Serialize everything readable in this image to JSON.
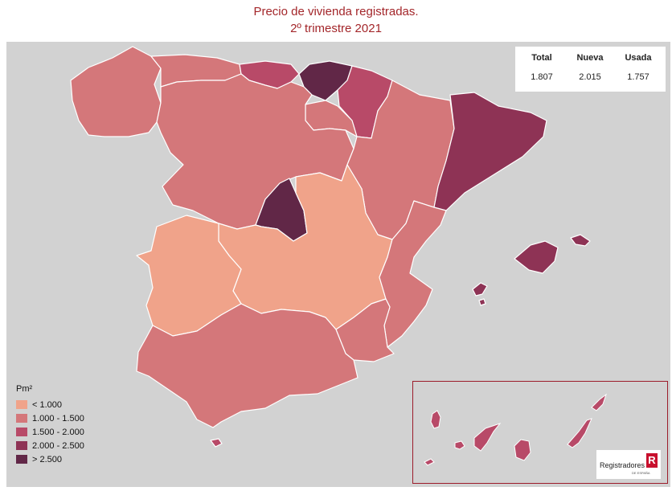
{
  "title": {
    "line1": "Precio de vivienda registradas.",
    "line2": "2º trimestre 2021"
  },
  "summary": {
    "headers": [
      "Total",
      "Nueva",
      "Usada"
    ],
    "values": [
      "1.807",
      "2.015",
      "1.757"
    ]
  },
  "legend": {
    "title": "Pm²",
    "items": [
      {
        "label": "< 1.000",
        "color": "#f0a38a"
      },
      {
        "label": "1.000 - 1.500",
        "color": "#d4777a"
      },
      {
        "label": "1.500 - 2.000",
        "color": "#b84a68"
      },
      {
        "label": "2.000 - 2.500",
        "color": "#8e3355"
      },
      {
        "label": "> 2.500",
        "color": "#612747"
      }
    ]
  },
  "regions": [
    {
      "name": "Galicia",
      "class": "1.000 - 1.500"
    },
    {
      "name": "Asturias",
      "class": "1.000 - 1.500"
    },
    {
      "name": "Cantabria",
      "class": "1.500 - 2.000"
    },
    {
      "name": "País Vasco",
      "class": "> 2.500"
    },
    {
      "name": "Navarra",
      "class": "1.500 - 2.000"
    },
    {
      "name": "La Rioja",
      "class": "1.000 - 1.500"
    },
    {
      "name": "Castilla y León",
      "class": "1.000 - 1.500"
    },
    {
      "name": "Aragón",
      "class": "1.000 - 1.500"
    },
    {
      "name": "Cataluña",
      "class": "2.000 - 2.500"
    },
    {
      "name": "Madrid",
      "class": "> 2.500"
    },
    {
      "name": "Castilla-La Mancha",
      "class": "< 1.000"
    },
    {
      "name": "Extremadura",
      "class": "< 1.000"
    },
    {
      "name": "Comunidad Valenciana",
      "class": "1.000 - 1.500"
    },
    {
      "name": "Murcia",
      "class": "1.000 - 1.500"
    },
    {
      "name": "Andalucía",
      "class": "1.000 - 1.500"
    },
    {
      "name": "Islas Baleares",
      "class": "2.000 - 2.500"
    },
    {
      "name": "Ceuta",
      "class": "1.500 - 2.000"
    },
    {
      "name": "Canarias",
      "class": "1.500 - 2.000"
    }
  ],
  "logo": {
    "text": "Registradores",
    "sub": "DE ESPAÑA",
    "mark": "R"
  },
  "colors": {
    "background": "#d2d2d2",
    "title": "#a3262a",
    "border": "#ffffff"
  }
}
